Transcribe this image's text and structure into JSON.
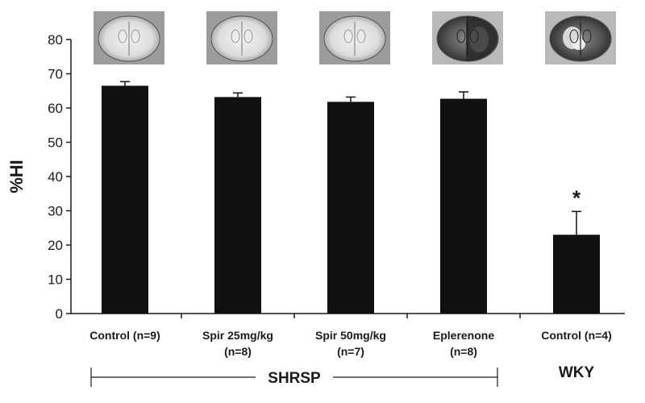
{
  "chart_data": {
    "type": "bar",
    "ylabel": "%HI",
    "ylim": [
      0,
      80
    ],
    "yticks": [
      0,
      10,
      20,
      30,
      40,
      50,
      60,
      70,
      80
    ],
    "categories": [
      [
        "Control (n=9)"
      ],
      [
        "Spir 25mg/kg",
        "(n=8)"
      ],
      [
        "Spir 50mg/kg",
        "(n=7)"
      ],
      [
        "Eplerenone",
        "(n=8)"
      ],
      [
        "Control (n=4)"
      ]
    ],
    "values": [
      66.5,
      63.2,
      61.8,
      62.7,
      23.0
    ],
    "errors": [
      1.2,
      1.2,
      1.4,
      2.0,
      6.8
    ],
    "annotations": [
      {
        "category_index": 4,
        "text": "*"
      }
    ],
    "groups": [
      {
        "label": "SHRSP",
        "from": 0,
        "to": 3
      },
      {
        "label": "WKY",
        "from": 4,
        "to": 4
      }
    ],
    "bar_color": "#111111",
    "images": "brain-section-thumbnail above each bar"
  }
}
